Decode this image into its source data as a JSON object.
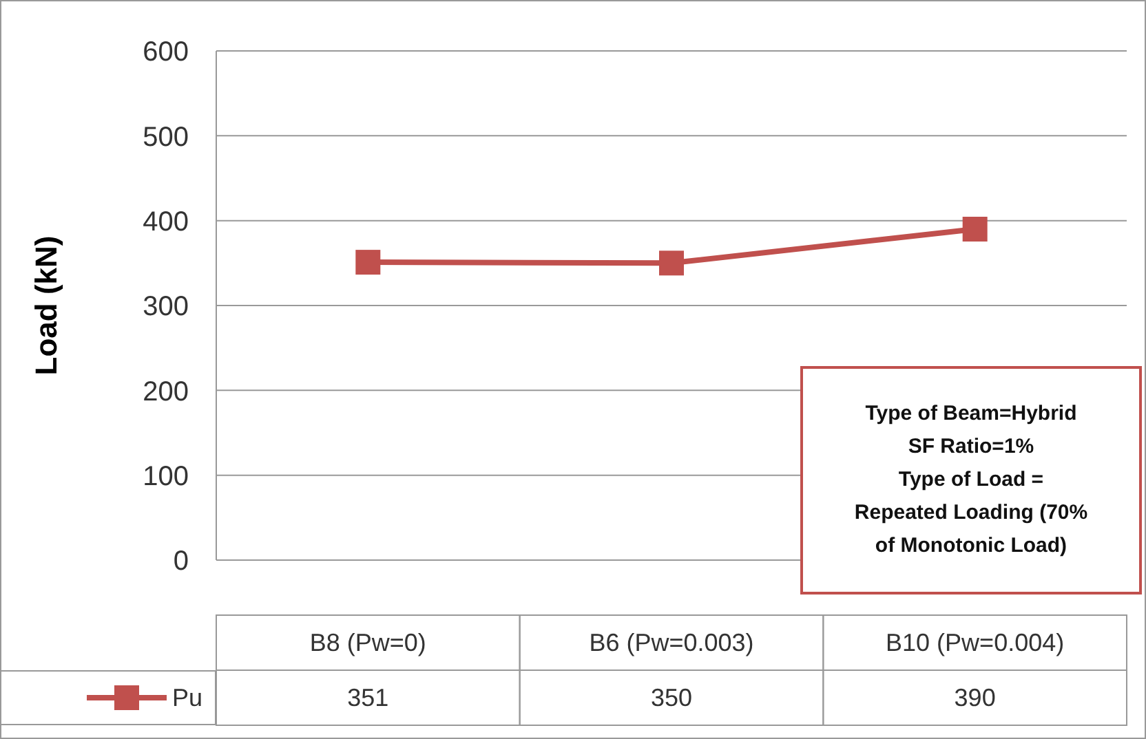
{
  "chart_data": {
    "type": "line",
    "ylabel": "Load (kN)",
    "categories": [
      "B8 (Pw=0)",
      "B6 (Pw=0.003)",
      "B10 (Pw=0.004)"
    ],
    "series": [
      {
        "name": "Pu",
        "color": "#c0504d",
        "values": [
          351,
          350,
          390
        ]
      }
    ],
    "ylim": [
      0,
      600
    ],
    "yticks": [
      0,
      100,
      200,
      300,
      400,
      500,
      600
    ],
    "grid": "y",
    "marker": "square",
    "line_style": "solid",
    "data_labels": true,
    "legend": "bottom left",
    "annotations": [
      "Type of Beam=Hybrid\nSF Ratio=1%\nType of Load =\nRepeated Loading (70%\nof Monotonic Load)"
    ]
  }
}
